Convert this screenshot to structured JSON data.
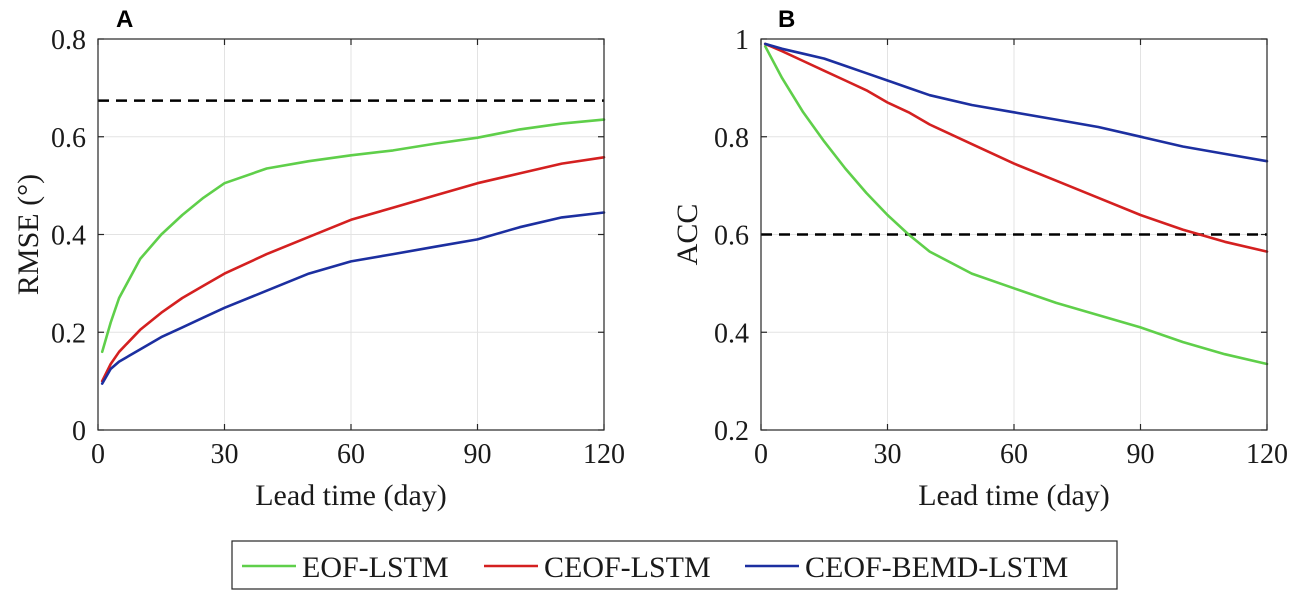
{
  "colors": {
    "eof": "#5fcf4a",
    "ceof": "#d42020",
    "bemd": "#1c2fa0",
    "threshold": "#000000"
  },
  "legend": {
    "items": [
      {
        "key": "eof",
        "label": "EOF-LSTM"
      },
      {
        "key": "ceof",
        "label": "CEOF-LSTM"
      },
      {
        "key": "bemd",
        "label": "CEOF-BEMD-LSTM"
      }
    ]
  },
  "chart_data": [
    {
      "type": "line",
      "panel": "A",
      "xlabel": "Lead time (day)",
      "ylabel": "RMSE (°)",
      "xlim": [
        0,
        120
      ],
      "ylim": [
        0,
        0.8
      ],
      "xticks": [
        0,
        30,
        60,
        90,
        120
      ],
      "yticks": [
        0,
        0.2,
        0.4,
        0.6,
        0.8
      ],
      "xtick_labels": [
        "0",
        "30",
        "60",
        "90",
        "120"
      ],
      "ytick_labels": [
        "0",
        "0.2",
        "0.4",
        "0.6",
        "0.8"
      ],
      "grid": true,
      "threshold": {
        "y": 0.674,
        "style": "dashed"
      },
      "x": [
        1,
        3,
        5,
        10,
        15,
        20,
        25,
        30,
        40,
        50,
        60,
        70,
        80,
        90,
        100,
        110,
        120
      ],
      "series": [
        {
          "name": "EOF-LSTM",
          "color_key": "eof",
          "values": [
            0.16,
            0.22,
            0.27,
            0.35,
            0.4,
            0.44,
            0.475,
            0.505,
            0.535,
            0.55,
            0.562,
            0.572,
            0.586,
            0.598,
            0.615,
            0.627,
            0.635
          ]
        },
        {
          "name": "CEOF-LSTM",
          "color_key": "ceof",
          "values": [
            0.1,
            0.135,
            0.16,
            0.205,
            0.24,
            0.27,
            0.295,
            0.32,
            0.36,
            0.395,
            0.43,
            0.455,
            0.48,
            0.505,
            0.525,
            0.545,
            0.558
          ]
        },
        {
          "name": "CEOF-BEMD-LSTM",
          "color_key": "bemd",
          "values": [
            0.095,
            0.125,
            0.14,
            0.165,
            0.19,
            0.21,
            0.23,
            0.25,
            0.285,
            0.32,
            0.345,
            0.36,
            0.375,
            0.39,
            0.415,
            0.435,
            0.445
          ]
        }
      ]
    },
    {
      "type": "line",
      "panel": "B",
      "xlabel": "Lead time (day)",
      "ylabel": "ACC",
      "xlim": [
        0,
        120
      ],
      "ylim": [
        0.2,
        1
      ],
      "xticks": [
        0,
        30,
        60,
        90,
        120
      ],
      "yticks": [
        0.2,
        0.4,
        0.6,
        0.8,
        1
      ],
      "xtick_labels": [
        "0",
        "30",
        "60",
        "90",
        "120"
      ],
      "ytick_labels": [
        "0.2",
        "0.4",
        "0.6",
        "0.8",
        "1"
      ],
      "grid": true,
      "threshold": {
        "y": 0.6,
        "style": "dashed"
      },
      "x": [
        1,
        5,
        10,
        15,
        20,
        25,
        30,
        35,
        40,
        50,
        60,
        70,
        80,
        90,
        100,
        110,
        120
      ],
      "series": [
        {
          "name": "EOF-LSTM",
          "color_key": "eof",
          "values": [
            0.985,
            0.92,
            0.85,
            0.79,
            0.735,
            0.685,
            0.64,
            0.6,
            0.565,
            0.52,
            0.49,
            0.46,
            0.435,
            0.41,
            0.38,
            0.355,
            0.335
          ]
        },
        {
          "name": "CEOF-LSTM",
          "color_key": "ceof",
          "values": [
            0.99,
            0.975,
            0.955,
            0.935,
            0.915,
            0.895,
            0.87,
            0.85,
            0.825,
            0.785,
            0.745,
            0.71,
            0.675,
            0.64,
            0.61,
            0.585,
            0.565
          ]
        },
        {
          "name": "CEOF-BEMD-LSTM",
          "color_key": "bemd",
          "values": [
            0.99,
            0.98,
            0.97,
            0.96,
            0.945,
            0.93,
            0.915,
            0.9,
            0.885,
            0.865,
            0.85,
            0.835,
            0.82,
            0.8,
            0.78,
            0.765,
            0.75
          ]
        }
      ]
    }
  ]
}
